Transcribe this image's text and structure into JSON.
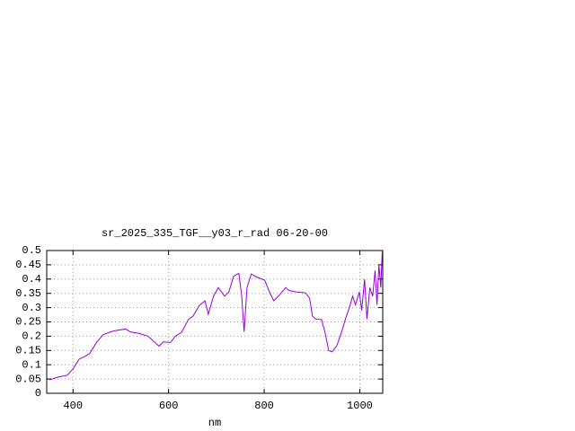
{
  "chart_data": {
    "type": "line",
    "title": "sr_2025_335_TGF__y03_r_rad 06-20-00",
    "x_label": "nm",
    "x": [
      351,
      369,
      388,
      401,
      413,
      426,
      435,
      450,
      463,
      482,
      491,
      510,
      520,
      538,
      557,
      570,
      580,
      589,
      604,
      614,
      627,
      642,
      651,
      664,
      676,
      683,
      694,
      704,
      717,
      726,
      736,
      747,
      753,
      758,
      764,
      773,
      783,
      801,
      811,
      820,
      833,
      845,
      852,
      867,
      886,
      895,
      901,
      908,
      920,
      927,
      935,
      942,
      952,
      961,
      970,
      980,
      985,
      991,
      999,
      1004,
      1010,
      1015,
      1021,
      1027,
      1032,
      1036,
      1040,
      1044,
      1047
    ],
    "series": [
      {
        "color": "#9400d3",
        "values": [
          0.047,
          0.057,
          0.063,
          0.088,
          0.12,
          0.13,
          0.14,
          0.18,
          0.205,
          0.217,
          0.22,
          0.225,
          0.215,
          0.21,
          0.2,
          0.18,
          0.165,
          0.18,
          0.178,
          0.2,
          0.213,
          0.26,
          0.27,
          0.307,
          0.324,
          0.277,
          0.34,
          0.37,
          0.34,
          0.355,
          0.41,
          0.42,
          0.34,
          0.215,
          0.37,
          0.418,
          0.408,
          0.396,
          0.355,
          0.324,
          0.346,
          0.37,
          0.36,
          0.355,
          0.352,
          0.333,
          0.27,
          0.26,
          0.258,
          0.215,
          0.15,
          0.145,
          0.167,
          0.21,
          0.26,
          0.31,
          0.34,
          0.31,
          0.355,
          0.29,
          0.4,
          0.26,
          0.37,
          0.34,
          0.43,
          0.31,
          0.45,
          0.37,
          0.5
        ]
      }
    ],
    "xlim": [
      345,
      1048
    ],
    "xticks": [
      400,
      600,
      800,
      1000
    ],
    "ylim": [
      0,
      0.5
    ],
    "yticks": [
      0,
      0.05,
      0.1,
      0.15,
      0.2,
      0.25,
      0.3,
      0.35,
      0.4,
      0.45,
      0.5
    ],
    "grid": true
  }
}
